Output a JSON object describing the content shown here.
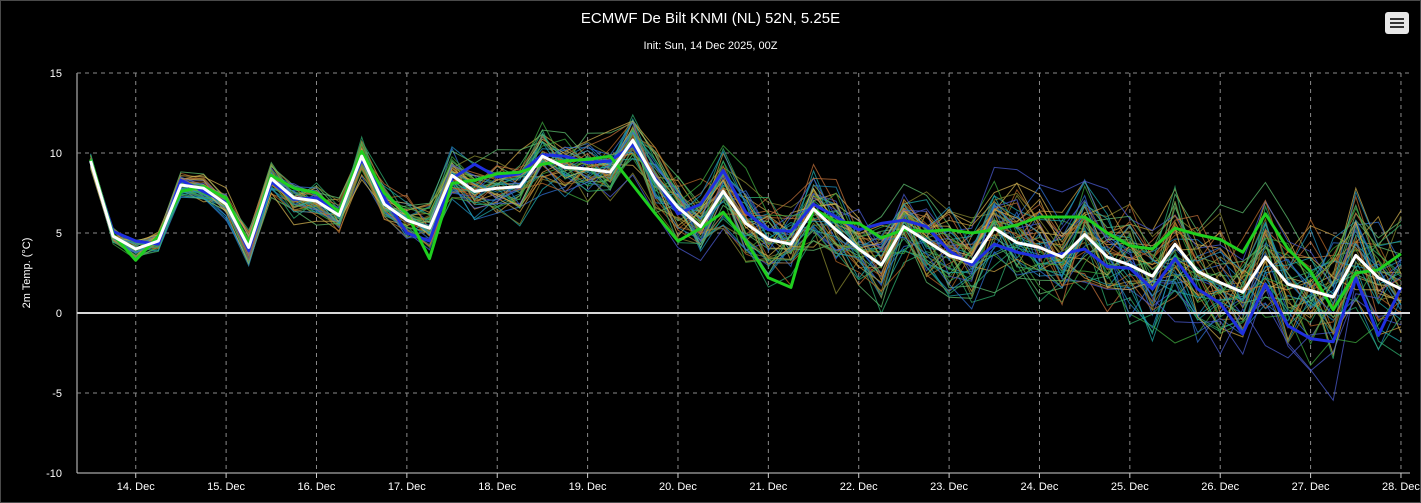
{
  "header": {
    "title": "ECMWF De Bilt KNMI (NL) 52N, 5.25E",
    "subtitle": "Init: Sun, 14 Dec 2025, 00Z"
  },
  "icons": {
    "menu": "hamburger-menu-icon"
  },
  "chart_data": {
    "type": "line",
    "ylabel": "2m Temp. (°C)",
    "ylim": [
      -10,
      15
    ],
    "y_ticks": [
      15,
      10,
      5,
      0,
      -5,
      -10
    ],
    "x_ticks": [
      "14. Dec",
      "15. Dec",
      "16. Dec",
      "17. Dec",
      "18. Dec",
      "19. Dec",
      "20. Dec",
      "21. Dec",
      "22. Dec",
      "23. Dec",
      "24. Dec",
      "25. Dec",
      "26. Dec",
      "27. Dec",
      "28. Dec"
    ],
    "x_tick_days": [
      14,
      15,
      16,
      17,
      18,
      19,
      20,
      21,
      22,
      23,
      24,
      25,
      26,
      27,
      28
    ],
    "xlim_days": [
      13.35,
      28.1
    ],
    "grid": true,
    "zero_line": true,
    "x_days": [
      13.5,
      13.75,
      14,
      14.25,
      14.5,
      14.75,
      15,
      15.25,
      15.5,
      15.75,
      16,
      16.25,
      16.5,
      16.75,
      17,
      17.25,
      17.5,
      17.75,
      18,
      18.25,
      18.5,
      18.75,
      19,
      19.25,
      19.5,
      19.75,
      20,
      20.25,
      20.5,
      20.75,
      21,
      21.25,
      21.5,
      21.75,
      22,
      22.25,
      22.5,
      22.75,
      23,
      23.25,
      23.5,
      23.75,
      24,
      24.25,
      24.5,
      24.75,
      25,
      25.25,
      25.5,
      25.75,
      26,
      26.25,
      26.5,
      26.75,
      27,
      27.25,
      27.5,
      27.75,
      28
    ],
    "series": [
      {
        "color": "#ffffff",
        "values": [
          9.5,
          4.8,
          4.0,
          4.5,
          8.0,
          7.8,
          6.8,
          4.1,
          8.4,
          7.2,
          7.0,
          6.1,
          9.8,
          6.8,
          5.8,
          5.3,
          8.6,
          7.6,
          7.8,
          7.9,
          9.8,
          9.1,
          9.0,
          8.8,
          10.8,
          8.3,
          6.6,
          5.4,
          7.6,
          5.6,
          4.6,
          4.3,
          6.5,
          5.2,
          4.0,
          3.0,
          5.4,
          4.5,
          3.6,
          3.2,
          5.3,
          4.4,
          4.1,
          3.5,
          4.9,
          3.5,
          3.0,
          2.3,
          4.3,
          2.6,
          1.9,
          1.3,
          3.5,
          1.8,
          1.4,
          1.0,
          3.6,
          2.2,
          1.5
        ]
      },
      {
        "color": "#1fcf1f",
        "values": [
          9.6,
          4.9,
          3.3,
          4.8,
          7.6,
          7.9,
          7.2,
          4.3,
          8.6,
          7.8,
          7.5,
          6.3,
          10.1,
          7.5,
          6.2,
          3.4,
          8.1,
          8.3,
          8.7,
          8.8,
          9.3,
          9.5,
          9.6,
          9.8,
          8.0,
          6.2,
          4.5,
          5.3,
          6.3,
          4.5,
          2.2,
          1.6,
          6.5,
          5.7,
          5.6,
          4.7,
          5.2,
          5.1,
          5.2,
          5.0,
          5.2,
          5.5,
          6.0,
          6.0,
          6.0,
          5.0,
          4.2,
          4.0,
          5.3,
          4.9,
          4.6,
          3.8,
          6.2,
          4.0,
          2.6,
          0.2,
          2.5,
          2.7,
          3.7
        ]
      },
      {
        "color": "#1f2fdf",
        "values": [
          9.5,
          5.1,
          4.5,
          4.3,
          8.3,
          7.6,
          6.9,
          3.9,
          8.2,
          7.1,
          7.2,
          6.3,
          9.6,
          7.2,
          5.0,
          4.5,
          8.4,
          9.3,
          8.5,
          8.7,
          9.9,
          9.8,
          9.4,
          9.5,
          10.5,
          8.4,
          6.2,
          6.8,
          8.9,
          6.3,
          5.2,
          5.1,
          6.8,
          6.0,
          5.2,
          5.6,
          5.8,
          5.4,
          3.9,
          3.0,
          4.3,
          3.8,
          3.5,
          3.7,
          4.0,
          2.9,
          2.8,
          1.5,
          3.4,
          1.5,
          0.6,
          -1.3,
          1.8,
          -0.8,
          -1.6,
          -1.8,
          2.2,
          -1.4,
          1.6
        ]
      }
    ]
  }
}
